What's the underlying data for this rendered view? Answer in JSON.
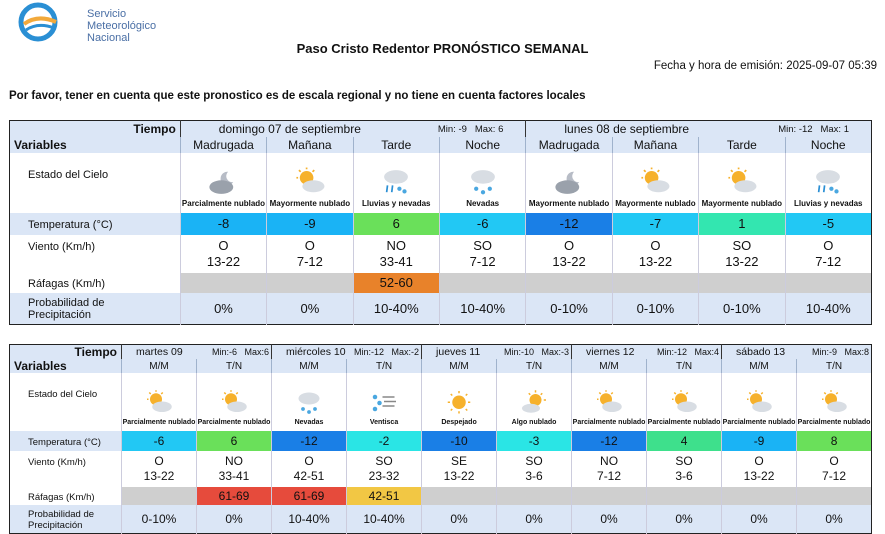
{
  "org": {
    "line1": "Servicio",
    "line2": "Meteorológico",
    "line3": "Nacional"
  },
  "title_station": "Paso Cristo Redentor",
  "title_label": "PRONÓSTICO SEMANAL",
  "emission": "Fecha y hora de emisión: 2025-09-07 05:39",
  "note": "Por favor, tener en cuenta que este pronostico es de escala regional y no tiene en cuenta factores locales",
  "labels": {
    "tiempo": "Tiempo",
    "variables": "Variables",
    "estado": "Estado del Cielo",
    "temp": "Temperatura (°C)",
    "viento": "Viento (Km/h)",
    "rafagas": "Ráfagas (Km/h)",
    "prob1": "Probabilidad de",
    "prob2": "Precipitación"
  },
  "colors": {
    "temp_-12": "#1a7fe6",
    "temp_-10": "#1a7fe6",
    "temp_-9": "#1ab3f5",
    "temp_-8": "#1ab3f5",
    "temp_-7": "#22c8f4",
    "temp_-6": "#22c8f4",
    "temp_-5": "#22c8f4",
    "temp_-3": "#2ae5e5",
    "temp_-2": "#2ae5e5",
    "temp_1": "#33e6b0",
    "temp_4": "#3ee08c",
    "temp_6": "#6ae05a",
    "temp_8": "#6ae05a",
    "gust_52-60": "#e8822a",
    "gust_61-69": "#e64b3c",
    "gust_42-51": "#f2c744"
  },
  "table1": {
    "days": [
      {
        "name": "domingo 07 de septiembre",
        "min": "Min: -9",
        "max": "Max: 6"
      },
      {
        "name": "lunes 08 de septiembre",
        "min": "Min: -12",
        "max": "Max: 1"
      }
    ],
    "periods": [
      "Madrugada",
      "Mañana",
      "Tarde",
      "Noche",
      "Madrugada",
      "Mañana",
      "Tarde",
      "Noche"
    ],
    "sky": [
      {
        "icon": "cloud-night-icon",
        "t": "Parcialmente nublado"
      },
      {
        "icon": "partly-cloudy-icon",
        "t": "Mayormente nublado"
      },
      {
        "icon": "rain-snow-icon",
        "t": "Lluvias y nevadas"
      },
      {
        "icon": "snow-icon",
        "t": "Nevadas"
      },
      {
        "icon": "cloud-night-icon",
        "t": "Mayormente nublado"
      },
      {
        "icon": "partly-cloudy-icon",
        "t": "Mayormente nublado"
      },
      {
        "icon": "partly-cloudy-icon",
        "t": "Mayormente nublado"
      },
      {
        "icon": "rain-snow-icon",
        "t": "Lluvias y nevadas"
      }
    ],
    "temp": [
      "-8",
      "-9",
      "6",
      "-6",
      "-12",
      "-7",
      "1",
      "-5"
    ],
    "wdir": [
      "O",
      "O",
      "NO",
      "SO",
      "O",
      "O",
      "SO",
      "O"
    ],
    "wspd": [
      "13-22",
      "7-12",
      "33-41",
      "7-12",
      "13-22",
      "13-22",
      "13-22",
      "7-12"
    ],
    "gust": [
      "",
      "",
      "52-60",
      "",
      "",
      "",
      "",
      ""
    ],
    "prob": [
      "0%",
      "0%",
      "10-40%",
      "10-40%",
      "0-10%",
      "0-10%",
      "0-10%",
      "10-40%"
    ]
  },
  "table2": {
    "days": [
      {
        "name": "martes 09",
        "min": "Min:-6",
        "max": "Max:6"
      },
      {
        "name": "miércoles 10",
        "min": "Min:-12",
        "max": "Max:-2"
      },
      {
        "name": "jueves 11",
        "min": "Min:-10",
        "max": "Max:-3"
      },
      {
        "name": "viernes 12",
        "min": "Min:-12",
        "max": "Max:4"
      },
      {
        "name": "sábado 13",
        "min": "Min:-9",
        "max": "Max:8"
      }
    ],
    "periods": [
      "M/M",
      "T/N",
      "M/M",
      "T/N",
      "M/M",
      "T/N",
      "M/M",
      "T/N",
      "M/M",
      "T/N"
    ],
    "sky": [
      {
        "icon": "partly-cloudy-icon",
        "t": "Parcialmente nublado"
      },
      {
        "icon": "partly-cloudy-icon",
        "t": "Parcialmente nublado"
      },
      {
        "icon": "snow-icon",
        "t": "Nevadas"
      },
      {
        "icon": "wind-snow-icon",
        "t": "Ventisca"
      },
      {
        "icon": "sun-icon",
        "t": "Despejado"
      },
      {
        "icon": "sun-cloud-icon",
        "t": "Algo nublado"
      },
      {
        "icon": "partly-cloudy-icon",
        "t": "Parcialmente nublado"
      },
      {
        "icon": "partly-cloudy-icon",
        "t": "Parcialmente nublado"
      },
      {
        "icon": "partly-cloudy-icon",
        "t": "Parcialmente nublado"
      },
      {
        "icon": "partly-cloudy-icon",
        "t": "Parcialmente nublado"
      }
    ],
    "temp": [
      "-6",
      "6",
      "-12",
      "-2",
      "-10",
      "-3",
      "-12",
      "4",
      "-9",
      "8"
    ],
    "wdir": [
      "O",
      "NO",
      "O",
      "SO",
      "SE",
      "SO",
      "NO",
      "SO",
      "O",
      "O"
    ],
    "wspd": [
      "13-22",
      "33-41",
      "42-51",
      "23-32",
      "13-22",
      "3-6",
      "7-12",
      "3-6",
      "13-22",
      "7-12"
    ],
    "gust": [
      "",
      "61-69",
      "61-69",
      "42-51",
      "",
      "",
      "",
      "",
      "",
      ""
    ],
    "prob": [
      "0-10%",
      "0%",
      "10-40%",
      "10-40%",
      "0%",
      "0%",
      "0%",
      "0%",
      "0%",
      "0%"
    ]
  }
}
